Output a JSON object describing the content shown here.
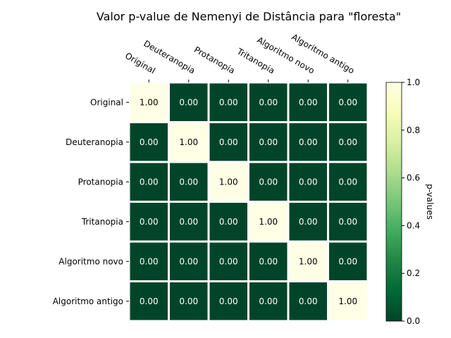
{
  "chart_data": {
    "type": "heatmap",
    "title": "Valor p-value de Nemenyi de Distância para \"floresta\"",
    "x_categories": [
      "Original",
      "Deuteranopia",
      "Protanopia",
      "Tritanopia",
      "Algoritmo novo",
      "Algoritmo antigo"
    ],
    "y_categories": [
      "Original",
      "Deuteranopia",
      "Protanopia",
      "Tritanopia",
      "Algoritmo novo",
      "Algoritmo antigo"
    ],
    "values": [
      [
        1.0,
        0.0,
        0.0,
        0.0,
        0.0,
        0.0
      ],
      [
        0.0,
        1.0,
        0.0,
        0.0,
        0.0,
        0.0
      ],
      [
        0.0,
        0.0,
        1.0,
        0.0,
        0.0,
        0.0
      ],
      [
        0.0,
        0.0,
        0.0,
        1.0,
        0.0,
        0.0
      ],
      [
        0.0,
        0.0,
        0.0,
        0.0,
        1.0,
        0.0
      ],
      [
        0.0,
        0.0,
        0.0,
        0.0,
        0.0,
        1.0
      ]
    ],
    "colormap": "YlGn_r",
    "colorbar": {
      "label": "p-values",
      "range": [
        0.0,
        1.0
      ],
      "ticks": [
        0.0,
        0.2,
        0.4,
        0.6,
        0.8,
        1.0
      ],
      "tick_labels": [
        "0.0",
        "0.2",
        "0.4",
        "0.6",
        "0.8",
        "1.0"
      ]
    },
    "x_tick_position": "top",
    "grid": true,
    "colors": {
      "low": "#004529",
      "high": "#ffffe5",
      "grid_line": "#ffffff",
      "text_on_dark": "#ffffff",
      "text_on_light": "#000000"
    }
  }
}
